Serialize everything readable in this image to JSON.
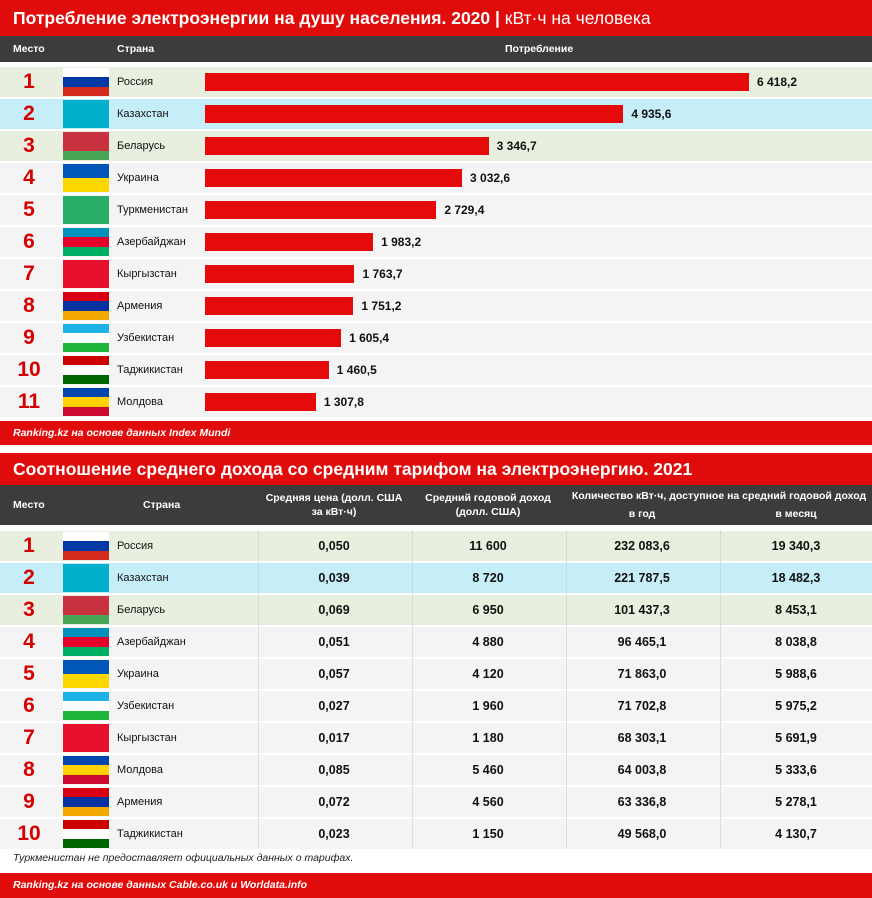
{
  "chart_data": [
    {
      "type": "bar",
      "title": "Потребление электроэнергии на душу населения. 2020",
      "subtitle": "кВт·ч на человека",
      "columns": {
        "rank": "Место",
        "country": "Страна",
        "value": "Потребление"
      },
      "categories": [
        "Россия",
        "Казахстан",
        "Беларусь",
        "Украина",
        "Туркменистан",
        "Азербайджан",
        "Кыргызстан",
        "Армения",
        "Узбекистан",
        "Таджикистан",
        "Молдова"
      ],
      "ranks": [
        "1",
        "2",
        "3",
        "4",
        "5",
        "6",
        "7",
        "8",
        "9",
        "10",
        "11"
      ],
      "values": [
        6418.2,
        4935.6,
        3346.7,
        3032.6,
        2729.4,
        1983.2,
        1763.7,
        1751.2,
        1605.4,
        1460.5,
        1307.8
      ],
      "value_labels": [
        "6 418,2",
        "4 935,6",
        "3 346,7",
        "3 032,6",
        "2 729,4",
        "1 983,2",
        "1 763,7",
        "1 751,2",
        "1 605,4",
        "1 460,5",
        "1 307,8"
      ],
      "source": "Ranking.kz на основе данных Index Mundi"
    },
    {
      "type": "table",
      "title": "Соотношение среднего дохода со средним тарифом на электроэнергию. 2021",
      "columns": {
        "rank": "Место",
        "country": "Страна",
        "price_l1": "Средняя цена (долл. США",
        "price_l2": "за кВт·ч)",
        "income_l1": "Средний годовой доход",
        "income_l2": "(долл. США)",
        "kwh_group": "Количество кВт·ч, доступное на средний годовой доход",
        "kwh_year": "в год",
        "kwh_month": "в месяц"
      },
      "rows": [
        {
          "rank": "1",
          "country": "Россия",
          "price": "0,050",
          "income": "11 600",
          "year": "232 083,6",
          "month": "19 340,3"
        },
        {
          "rank": "2",
          "country": "Казахстан",
          "price": "0,039",
          "income": "8 720",
          "year": "221 787,5",
          "month": "18 482,3"
        },
        {
          "rank": "3",
          "country": "Беларусь",
          "price": "0,069",
          "income": "6 950",
          "year": "101 437,3",
          "month": "8 453,1"
        },
        {
          "rank": "4",
          "country": "Азербайджан",
          "price": "0,051",
          "income": "4 880",
          "year": "96 465,1",
          "month": "8 038,8"
        },
        {
          "rank": "5",
          "country": "Украина",
          "price": "0,057",
          "income": "4 120",
          "year": "71 863,0",
          "month": "5 988,6"
        },
        {
          "rank": "6",
          "country": "Узбекистан",
          "price": "0,027",
          "income": "1 960",
          "year": "71 702,8",
          "month": "5 975,2"
        },
        {
          "rank": "7",
          "country": "Кыргызстан",
          "price": "0,017",
          "income": "1 180",
          "year": "68 303,1",
          "month": "5 691,9"
        },
        {
          "rank": "8",
          "country": "Молдова",
          "price": "0,085",
          "income": "5 460",
          "year": "64 003,8",
          "month": "5 333,6"
        },
        {
          "rank": "9",
          "country": "Армения",
          "price": "0,072",
          "income": "4 560",
          "year": "63 336,8",
          "month": "5 278,1"
        },
        {
          "rank": "10",
          "country": "Таджикистан",
          "price": "0,023",
          "income": "1 150",
          "year": "49 568,0",
          "month": "4 130,7"
        }
      ],
      "note": "Туркменистан не предоставляет официальных данных о тарифах.",
      "source": "Ranking.kz на основе данных Cable.co.uk и Worldata.info"
    }
  ],
  "colors": {
    "accent": "#e00b0b",
    "bar": "#e60b0b",
    "header": "#3c3c3c",
    "rank_text": "#d40000",
    "row_first": "#e8efdf",
    "row_kz": "#c6eef8",
    "row_third": "#e8efdf",
    "row_default": "#f4f4f4"
  },
  "flags": {
    "Россия": [
      "#ffffff",
      "#0039a6",
      "#d52b1e"
    ],
    "Казахстан": [
      "#00afca"
    ],
    "Беларусь": [
      "#c8313e",
      "#c8313e",
      "#4aa657"
    ],
    "Украина": [
      "#0057b7",
      "#ffd700"
    ],
    "Туркменистан": [
      "#28ae66"
    ],
    "Азербайджан": [
      "#0092bc",
      "#e4002b",
      "#00af66"
    ],
    "Кыргызстан": [
      "#e8112d"
    ],
    "Армения": [
      "#d90012",
      "#0033a0",
      "#f2a800"
    ],
    "Узбекистан": [
      "#1eb3e8",
      "#ffffff",
      "#1eb53a"
    ],
    "Таджикистан": [
      "#cc0000",
      "#ffffff",
      "#006600"
    ],
    "Молдова": [
      "#0046ae",
      "#ffd200",
      "#cc092f"
    ]
  }
}
